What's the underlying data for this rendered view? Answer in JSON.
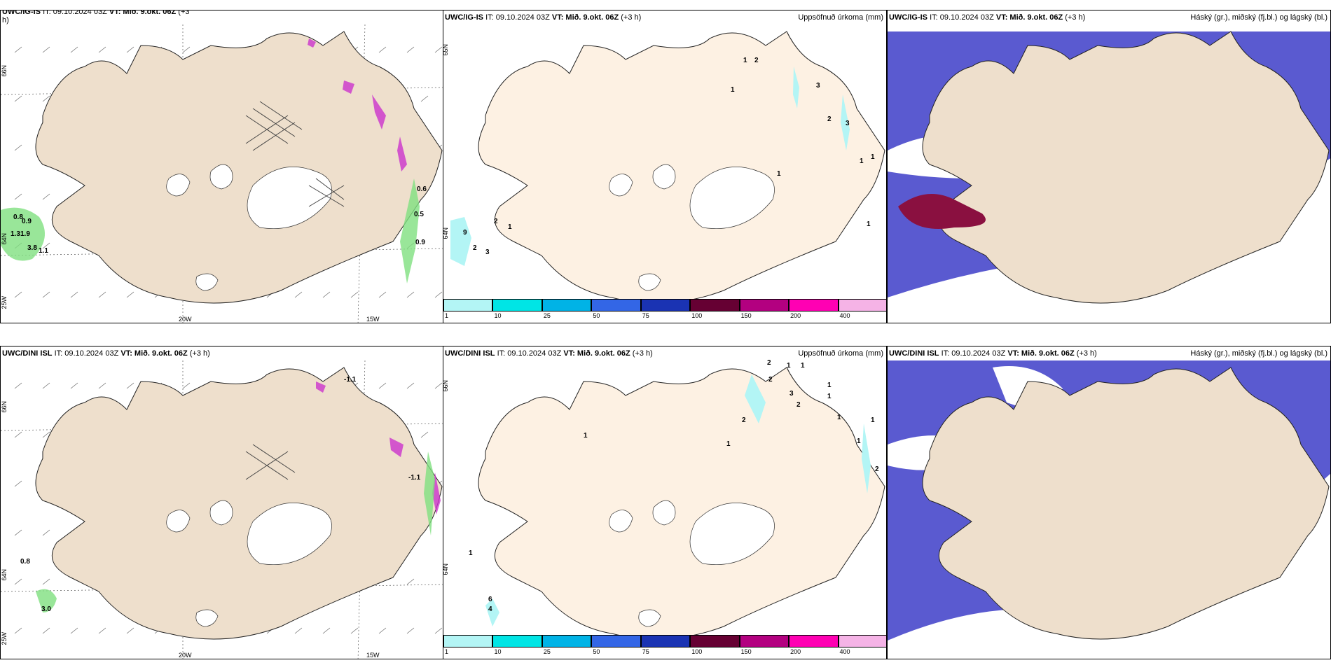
{
  "top_row": {
    "panel1": {
      "title_model": "UWC/IG-IS",
      "title_it": "IT: 09.10.2024 03Z",
      "title_vt": "VT: Mið. 9.okt. 06Z",
      "title_step": "(+3",
      "title_wrap": "h)",
      "lon_labels": [
        "20W",
        "15W"
      ],
      "lat_labels": [
        "66N",
        "64N",
        "25W"
      ],
      "values": [
        "0.6",
        "0.5",
        "0.9",
        "0.8",
        "0.9",
        "1.3",
        "1.9",
        "3.8",
        "1.1"
      ]
    },
    "panel2": {
      "title_model": "UWC/IG-IS",
      "title_it": "IT: 09.10.2024 03Z",
      "title_vt": "VT: Mið. 9.okt. 06Z",
      "title_step": "(+3 h)",
      "right_title": "Uppsöfnuð úrkoma (mm)",
      "lat_labels": [
        "65N",
        "64N"
      ],
      "values": [
        "1",
        "2",
        "1",
        "3",
        "2",
        "3",
        "1",
        "1",
        "1",
        "1",
        "9",
        "2",
        "1",
        "2",
        "3"
      ]
    },
    "panel3": {
      "title_model": "UWC/IG-IS",
      "title_it": "IT: 09.10.2024 03Z",
      "title_vt": "VT: Mið. 9.okt. 06Z",
      "title_step": "(+3 h)",
      "right_title": "Háský (gr.), miðský (fj.bl.) og lágský (bl.)"
    }
  },
  "bottom_row": {
    "panel1": {
      "title_model": "UWC/DINI ISL",
      "title_it": "IT: 09.10.2024 03Z",
      "title_vt": "VT: Mið. 9.okt. 06Z",
      "title_step": "(+3 h)",
      "lon_labels": [
        "20W",
        "15W"
      ],
      "lat_labels": [
        "66N",
        "64N",
        "25W"
      ],
      "values": [
        "-1.1",
        "-1.1",
        "0.8",
        "3.0"
      ]
    },
    "panel2": {
      "title_model": "UWC/DINI ISL",
      "title_it": "IT: 09.10.2024 03Z",
      "title_vt": "VT: Mið. 9.okt. 06Z",
      "title_step": "(+3 h)",
      "right_title": "Uppsöfnuð úrkoma (mm)",
      "lat_labels": [
        "66N",
        "64N"
      ],
      "values": [
        "2",
        "1",
        "1",
        "2",
        "3",
        "2",
        "1",
        "1",
        "1",
        "1",
        "1",
        "1",
        "2",
        "1",
        "2",
        "1",
        "6",
        "4"
      ]
    },
    "panel3": {
      "title_model": "UWC/DINI ISL",
      "title_it": "IT: 09.10.2024 03Z",
      "title_vt": "VT: Mið. 9.okt. 06Z",
      "title_step": "(+3 h)",
      "right_title": "Háský (gr.), miðský (fj.bl.) og lágský (bl.)"
    }
  },
  "colorbar": {
    "labels": [
      "1",
      "10",
      "25",
      "50",
      "75",
      "100",
      "150",
      "200",
      "400"
    ],
    "colors": [
      "#b3f5f5",
      "#00e5e5",
      "#00b3e6",
      "#3366e6",
      "#1a33b3",
      "#660033",
      "#b30080",
      "#ff00b3",
      "#f5b3e6"
    ]
  },
  "colors": {
    "land_temp": "#eedfcc",
    "land_precip": "#fdf1e3",
    "cloud_low": "#5a5ad0",
    "cloud_mid": "#3a3aa0",
    "cloud_high": "#8a1040"
  }
}
